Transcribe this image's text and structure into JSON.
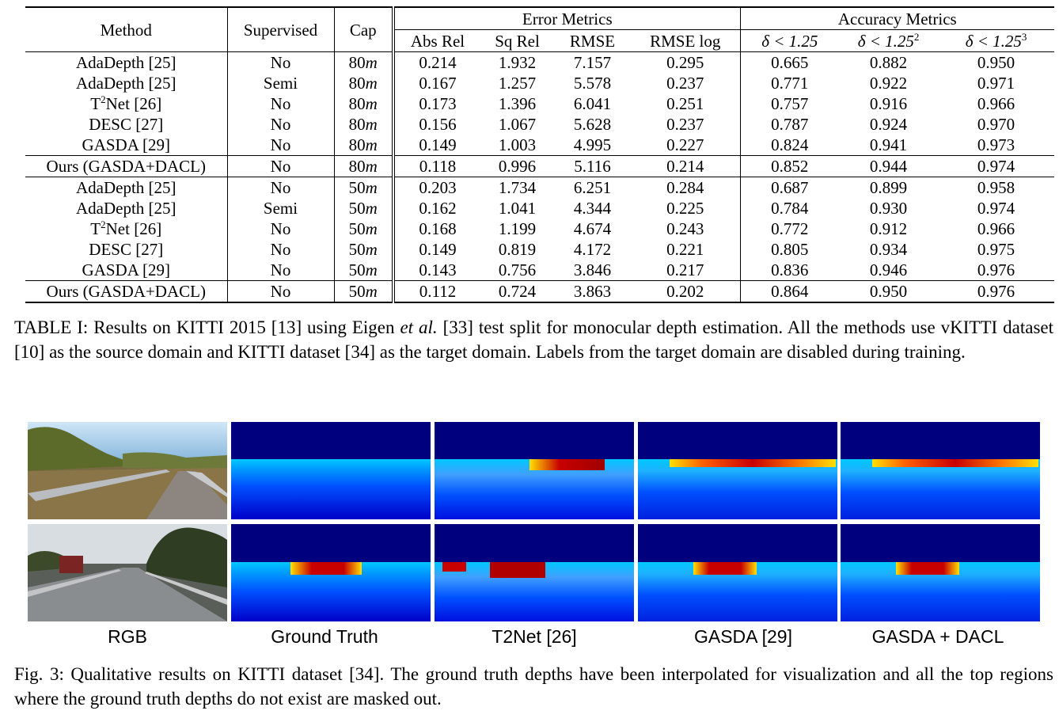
{
  "table": {
    "headers": {
      "method": "Method",
      "supervised": "Supervised",
      "cap": "Cap",
      "error_group": "Error Metrics",
      "accuracy_group": "Accuracy Metrics",
      "abs_rel": "Abs Rel",
      "sq_rel": "Sq Rel",
      "rmse": "RMSE",
      "rmse_log": "RMSE log",
      "d1_prefix": "δ < 1.25",
      "d2_prefix": "δ < 1.25",
      "d2_sup": "2",
      "d3_prefix": "δ < 1.25",
      "d3_sup": "3"
    },
    "rows": [
      {
        "method": "AdaDepth [25]",
        "sup": "No",
        "cap_num": "80",
        "cap_unit": "m",
        "abs_rel": "0.214",
        "sq_rel": "1.932",
        "rmse": "7.157",
        "rmse_log": "0.295",
        "d1": "0.665",
        "d2": "0.882",
        "d3": "0.950"
      },
      {
        "method": "AdaDepth [25]",
        "sup": "Semi",
        "cap_num": "80",
        "cap_unit": "m",
        "abs_rel": "0.167",
        "sq_rel": "1.257",
        "rmse": "5.578",
        "rmse_log": "0.237",
        "d1": "0.771",
        "d2": "0.922",
        "d3": "0.971"
      },
      {
        "method_pre": "T",
        "method_sup": "2",
        "method_post": "Net [26]",
        "sup": "No",
        "cap_num": "80",
        "cap_unit": "m",
        "abs_rel": "0.173",
        "sq_rel": "1.396",
        "rmse": "6.041",
        "rmse_log": "0.251",
        "d1": "0.757",
        "d2": "0.916",
        "d3": "0.966"
      },
      {
        "method": "DESC [27]",
        "sup": "No",
        "cap_num": "80",
        "cap_unit": "m",
        "abs_rel": "0.156",
        "sq_rel": "1.067",
        "rmse": "5.628",
        "rmse_log": "0.237",
        "d1": "0.787",
        "d2": "0.924",
        "d3": "0.970"
      },
      {
        "method": "GASDA [29]",
        "sup": "No",
        "cap_num": "80",
        "cap_unit": "m",
        "abs_rel": "0.149",
        "sq_rel": "1.003",
        "rmse": "4.995",
        "rmse_log": "0.227",
        "d1": "0.824",
        "d2": "0.941",
        "d3": "0.973"
      },
      {
        "method": "Ours (GASDA+DACL)",
        "sup": "No",
        "cap_num": "80",
        "cap_unit": "m",
        "abs_rel": "0.118",
        "sq_rel": "0.996",
        "rmse": "5.116",
        "rmse_log": "0.214",
        "d1": "0.852",
        "d2": "0.944",
        "d3": "0.974"
      },
      {
        "method": "AdaDepth [25]",
        "sup": "No",
        "cap_num": "50",
        "cap_unit": "m",
        "abs_rel": "0.203",
        "sq_rel": "1.734",
        "rmse": "6.251",
        "rmse_log": "0.284",
        "d1": "0.687",
        "d2": "0.899",
        "d3": "0.958"
      },
      {
        "method": "AdaDepth [25]",
        "sup": "Semi",
        "cap_num": "50",
        "cap_unit": "m",
        "abs_rel": "0.162",
        "sq_rel": "1.041",
        "rmse": "4.344",
        "rmse_log": "0.225",
        "d1": "0.784",
        "d2": "0.930",
        "d3": "0.974"
      },
      {
        "method_pre": "T",
        "method_sup": "2",
        "method_post": "Net [26]",
        "sup": "No",
        "cap_num": "50",
        "cap_unit": "m",
        "abs_rel": "0.168",
        "sq_rel": "1.199",
        "rmse": "4.674",
        "rmse_log": "0.243",
        "d1": "0.772",
        "d2": "0.912",
        "d3": "0.966"
      },
      {
        "method": "DESC [27]",
        "sup": "No",
        "cap_num": "50",
        "cap_unit": "m",
        "abs_rel": "0.149",
        "sq_rel": "0.819",
        "rmse": "4.172",
        "rmse_log": "0.221",
        "d1": "0.805",
        "d2": "0.934",
        "d3": "0.975"
      },
      {
        "method": "GASDA [29]",
        "sup": "No",
        "cap_num": "50",
        "cap_unit": "m",
        "abs_rel": "0.143",
        "sq_rel": "0.756",
        "rmse": "3.846",
        "rmse_log": "0.217",
        "d1": "0.836",
        "d2": "0.946",
        "d3": "0.976"
      },
      {
        "method": "Ours (GASDA+DACL)",
        "sup": "No",
        "cap_num": "50",
        "cap_unit": "m",
        "abs_rel": "0.112",
        "sq_rel": "0.724",
        "rmse": "3.863",
        "rmse_log": "0.202",
        "d1": "0.864",
        "d2": "0.950",
        "d3": "0.976"
      }
    ]
  },
  "table_caption": {
    "part1": "TABLE I: Results on KITTI 2015 [13] using Eigen ",
    "etal": "et al.",
    "part2": " [33] test split for monocular depth estimation. All the methods use vKITTI dataset [10] as the source domain and KITTI dataset [34] as the target domain. Labels from the target domain are disabled during training."
  },
  "figure": {
    "labels": [
      "RGB",
      "Ground Truth",
      "T2Net [26]",
      "GASDA [29]",
      "GASDA + DACL"
    ],
    "colors": {
      "mask": "#00007f",
      "deep_blue": "#0000c8",
      "blue": "#0050ff",
      "cyan": "#00c8ff",
      "yellow": "#ffe000",
      "red": "#c80000"
    }
  },
  "figure_caption": "Fig. 3: Qualitative results on KITTI dataset [34]. The ground truth depths have been interpolated for visualization and all the top regions where the ground truth depths do not exist are masked out."
}
